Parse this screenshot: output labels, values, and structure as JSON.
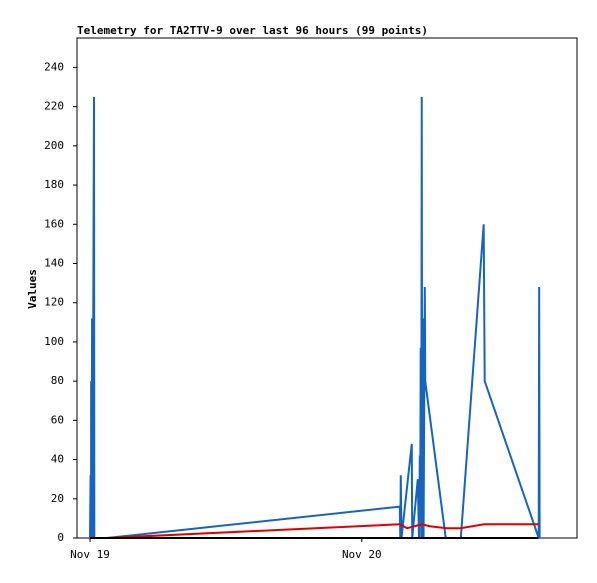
{
  "chart_data": {
    "type": "line",
    "title": "Telemetry for TA2TTV-9 over last 96 hours (99 points)",
    "y_label": "Values",
    "xlim": [
      -1.15,
      43
    ],
    "xticks": [
      {
        "value": 0,
        "label": "Nov 19"
      },
      {
        "value": 24,
        "label": "Nov 20"
      }
    ],
    "ylim": [
      0,
      255
    ],
    "yticks": [
      0,
      20,
      40,
      60,
      80,
      100,
      120,
      140,
      160,
      180,
      200,
      220,
      240
    ],
    "series": [
      {
        "color": "#1565c0",
        "x": [
          0,
          0.05,
          0.09,
          0.1,
          0.15,
          0.18,
          0.22,
          0.35,
          0.38,
          1.5,
          27.35,
          27.4,
          27.44,
          27.5,
          28.41,
          28.45,
          28.94,
          29.05,
          29.12,
          29.16,
          29.2,
          29.25,
          29.29,
          29.33,
          29.38,
          29.45,
          29.56,
          29.6,
          31.41,
          32.74,
          34.76,
          34.85,
          39.62,
          39.66,
          39.7
        ],
        "values": [
          0,
          32,
          0,
          80,
          0,
          112,
          0,
          225,
          0,
          0,
          16,
          0,
          32,
          0,
          48,
          0,
          30,
          0,
          42,
          20,
          97,
          0,
          225,
          0,
          112,
          0,
          128,
          80,
          0,
          0,
          160,
          80,
          0,
          128,
          0
        ]
      },
      {
        "color": "#e00000",
        "x": [
          1.5,
          27.35,
          28,
          29.3,
          30,
          31.5,
          32.7,
          34.8,
          39.6
        ],
        "values": [
          0,
          7,
          5,
          7,
          6,
          5,
          5,
          7,
          7
        ]
      },
      {
        "color": "#000000",
        "x": [
          0,
          39.6
        ],
        "values": [
          0,
          0
        ]
      }
    ]
  }
}
